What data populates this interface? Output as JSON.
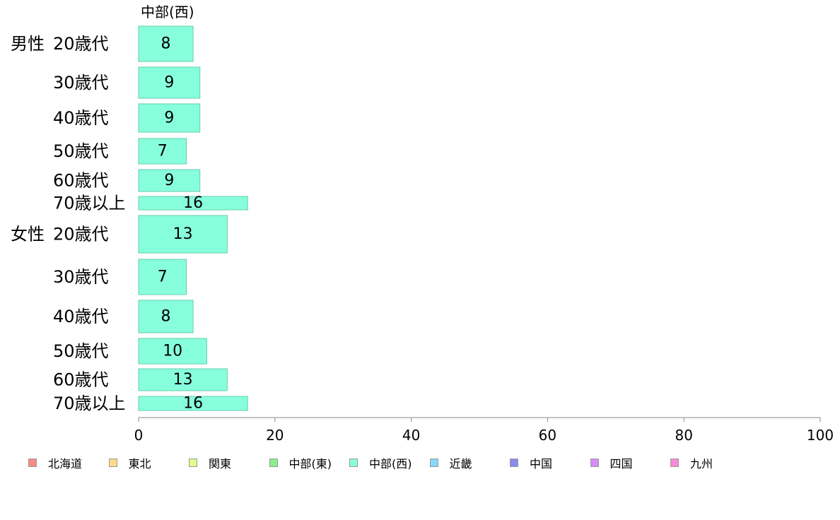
{
  "chart_data": {
    "type": "bar",
    "orientation": "horizontal",
    "series": [
      {
        "name": "中部(西)",
        "color": "#87ffdd",
        "values": [
          8,
          9,
          9,
          7,
          9,
          16,
          13,
          7,
          8,
          10,
          13,
          16
        ]
      }
    ],
    "categories": [
      {
        "group": "男性",
        "label": "20歳代"
      },
      {
        "group": "",
        "label": "30歳代"
      },
      {
        "group": "",
        "label": "40歳代"
      },
      {
        "group": "",
        "label": "50歳代"
      },
      {
        "group": "",
        "label": "60歳代"
      },
      {
        "group": "",
        "label": "70歳以上"
      },
      {
        "group": "女性",
        "label": "20歳代"
      },
      {
        "group": "",
        "label": "30歳代"
      },
      {
        "group": "",
        "label": "40歳代"
      },
      {
        "group": "",
        "label": "50歳代"
      },
      {
        "group": "",
        "label": "60歳代"
      },
      {
        "group": "",
        "label": "70歳以上"
      }
    ],
    "xlim": [
      0,
      100
    ],
    "xticks": [
      "0",
      "20",
      "40",
      "60",
      "80",
      "100"
    ],
    "grid": false,
    "legend_position": "bottom",
    "legend": [
      {
        "label": "北海道",
        "color": "#f88a84"
      },
      {
        "label": "東北",
        "color": "#fddb8a"
      },
      {
        "label": "関東",
        "color": "#ddff8a"
      },
      {
        "label": "中部(東)",
        "color": "#8af08a"
      },
      {
        "label": "中部(西)",
        "color": "#87ffdd"
      },
      {
        "label": "近畿",
        "color": "#89d8fb"
      },
      {
        "label": "中国",
        "color": "#8a8af0"
      },
      {
        "label": "四国",
        "color": "#d88af8"
      },
      {
        "label": "九州",
        "color": "#f88ad8"
      }
    ]
  }
}
